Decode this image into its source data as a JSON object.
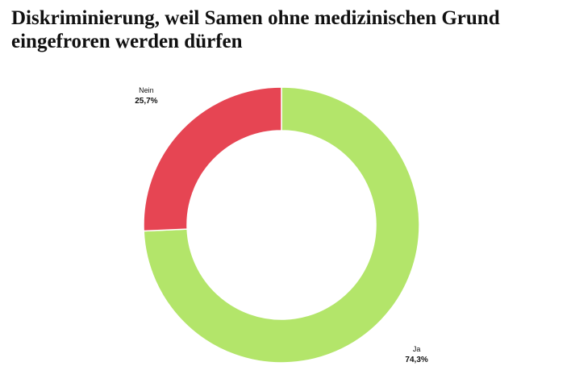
{
  "chart_data": {
    "type": "donut",
    "title": "Diskriminierung, weil Samen ohne medizinischen Grund eingefroren werden dürfen",
    "categories": [
      "Ja",
      "Nein"
    ],
    "values": [
      74.3,
      25.7
    ],
    "value_labels": [
      "74,3%",
      "25,7%"
    ],
    "colors": [
      "#b3e56a",
      "#e64553"
    ]
  }
}
